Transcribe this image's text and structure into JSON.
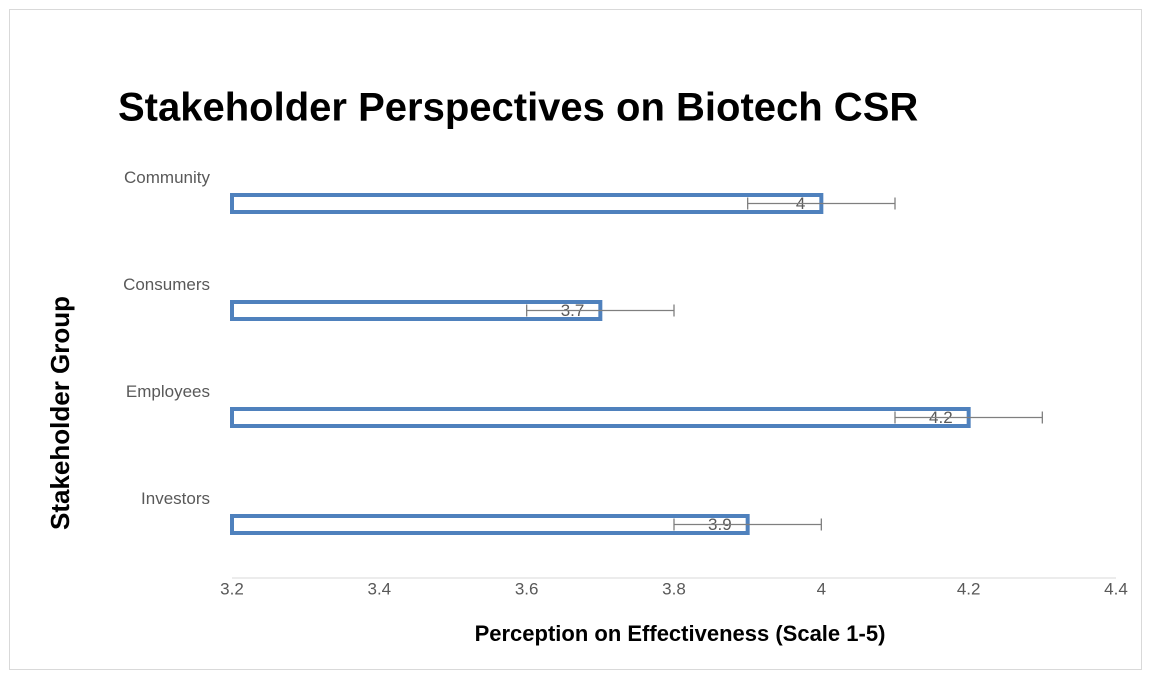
{
  "chart_data": {
    "type": "bar",
    "orientation": "horizontal",
    "title": "Stakeholder Perspectives on Biotech CSR",
    "x_label": "Perception on Effectiveness (Scale 1-5)",
    "y_label": "Stakeholder Group",
    "categories": [
      "Community",
      "Consumers",
      "Employees",
      "Investors"
    ],
    "values": [
      4,
      3.7,
      4.2,
      3.9
    ],
    "errors": [
      0.1,
      0.1,
      0.1,
      0.1
    ],
    "color": "#4f81bd",
    "xlim": [
      3.2,
      4.4
    ],
    "xticks": [
      3.2,
      3.4,
      3.6,
      3.8,
      4,
      4.2,
      4.4
    ],
    "grid": false
  }
}
